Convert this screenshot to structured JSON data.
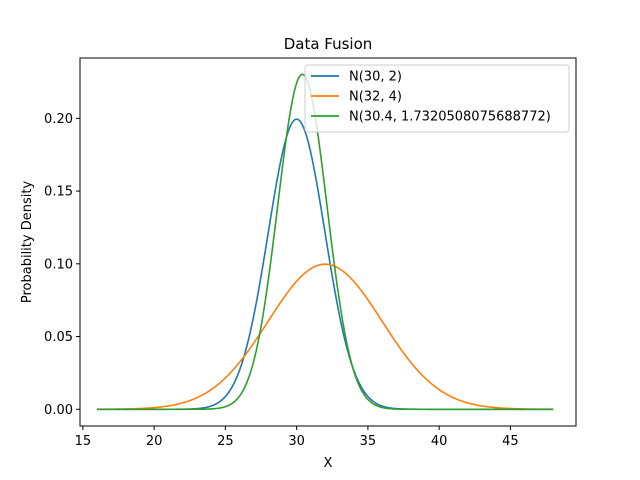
{
  "chart_data": {
    "type": "line",
    "title": "Data Fusion",
    "xlabel": "X",
    "ylabel": "Probability Density",
    "xlim": [
      14.8,
      49.6
    ],
    "ylim": [
      -0.0115,
      0.2415
    ],
    "x_ticks": [
      15,
      20,
      25,
      30,
      35,
      40,
      45
    ],
    "y_ticks": [
      0.0,
      0.05,
      0.1,
      0.15,
      0.2
    ],
    "y_tick_labels": [
      "0.00",
      "0.05",
      "0.10",
      "0.15",
      "0.20"
    ],
    "x_range": [
      16,
      48
    ],
    "grid": false,
    "legend_position": "top-right",
    "series": [
      {
        "name": "N(30, 2)",
        "mean": 30,
        "sd": 2,
        "color": "#1f77b4"
      },
      {
        "name": "N(32, 4)",
        "mean": 32,
        "sd": 4,
        "color": "#ff7f0e"
      },
      {
        "name": "N(30.4, 1.7320508075688772)",
        "mean": 30.4,
        "sd": 1.7320508075688772,
        "color": "#2ca02c"
      }
    ]
  }
}
